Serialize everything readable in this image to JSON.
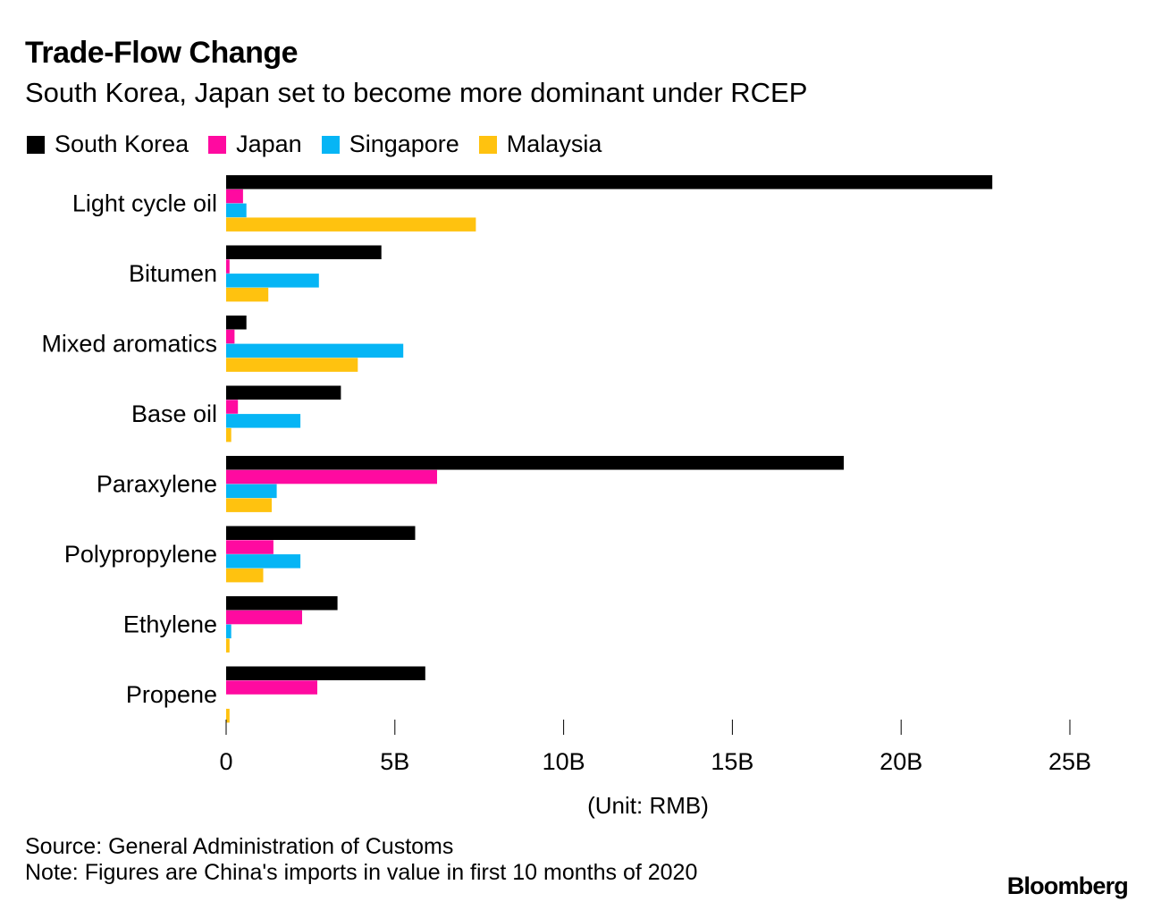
{
  "chart_data": {
    "type": "bar",
    "orientation": "horizontal",
    "title": "Trade-Flow Change",
    "subtitle": "South Korea, Japan set to become more dominant under RCEP",
    "categories": [
      "Light cycle oil",
      "Bitumen",
      "Mixed aromatics",
      "Base oil",
      "Paraxylene",
      "Polypropylene",
      "Ethylene",
      "Propene"
    ],
    "series": [
      {
        "name": "South Korea",
        "color": "#000000",
        "values": [
          22.7,
          4.6,
          0.6,
          3.4,
          18.3,
          5.6,
          3.3,
          5.9
        ]
      },
      {
        "name": "Japan",
        "color": "#ff0aa0",
        "values": [
          0.5,
          0.1,
          0.25,
          0.35,
          6.25,
          1.4,
          2.25,
          2.7
        ]
      },
      {
        "name": "Singapore",
        "color": "#06b5f5",
        "values": [
          0.6,
          2.75,
          5.25,
          2.2,
          1.5,
          2.2,
          0.15,
          0.0
        ]
      },
      {
        "name": "Malaysia",
        "color": "#ffc20f",
        "values": [
          7.4,
          1.25,
          3.9,
          0.15,
          1.35,
          1.1,
          0.1,
          0.1
        ]
      }
    ],
    "xlim": [
      0,
      25
    ],
    "xticks": [
      0,
      5,
      10,
      15,
      20,
      25
    ],
    "xticklabels": [
      "0",
      "5B",
      "10B",
      "15B",
      "20B",
      "25B"
    ],
    "xlabel": "(Unit: RMB)",
    "ylabel": "",
    "legend_position": "top-left",
    "grid": false
  },
  "footer": {
    "source": "Source: General Administration of Customs",
    "note": "Note: Figures are China's imports in value in first 10 months of 2020",
    "brand": "Bloomberg"
  }
}
